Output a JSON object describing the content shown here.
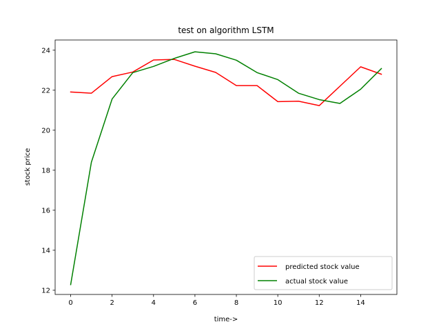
{
  "chart_data": {
    "type": "line",
    "title": "test on algorithm LSTM",
    "xlabel": "time->",
    "ylabel": "stock price",
    "xlim": [
      -0.75,
      15.75
    ],
    "ylim": [
      11.79,
      24.51
    ],
    "xticks": [
      0,
      2,
      4,
      6,
      8,
      10,
      12,
      14
    ],
    "yticks": [
      12,
      14,
      16,
      18,
      20,
      22,
      24
    ],
    "grid": false,
    "legend_position": "lower-right",
    "x": [
      0,
      1,
      2,
      3,
      4,
      5,
      6,
      7,
      8,
      9,
      10,
      11,
      12,
      13,
      14,
      15
    ],
    "series": [
      {
        "name": "predicted stock value",
        "color": "#ff0000",
        "values": [
          21.91,
          21.85,
          22.68,
          22.91,
          23.51,
          23.54,
          23.2,
          22.89,
          22.23,
          22.23,
          21.43,
          21.45,
          21.23,
          22.2,
          23.17,
          22.8
        ]
      },
      {
        "name": "actual stock value",
        "color": "#008000",
        "values": [
          12.28,
          18.4,
          21.56,
          22.88,
          23.19,
          23.59,
          23.92,
          23.82,
          23.5,
          22.88,
          22.53,
          21.85,
          21.53,
          21.34,
          22.05,
          23.08
        ]
      }
    ]
  }
}
